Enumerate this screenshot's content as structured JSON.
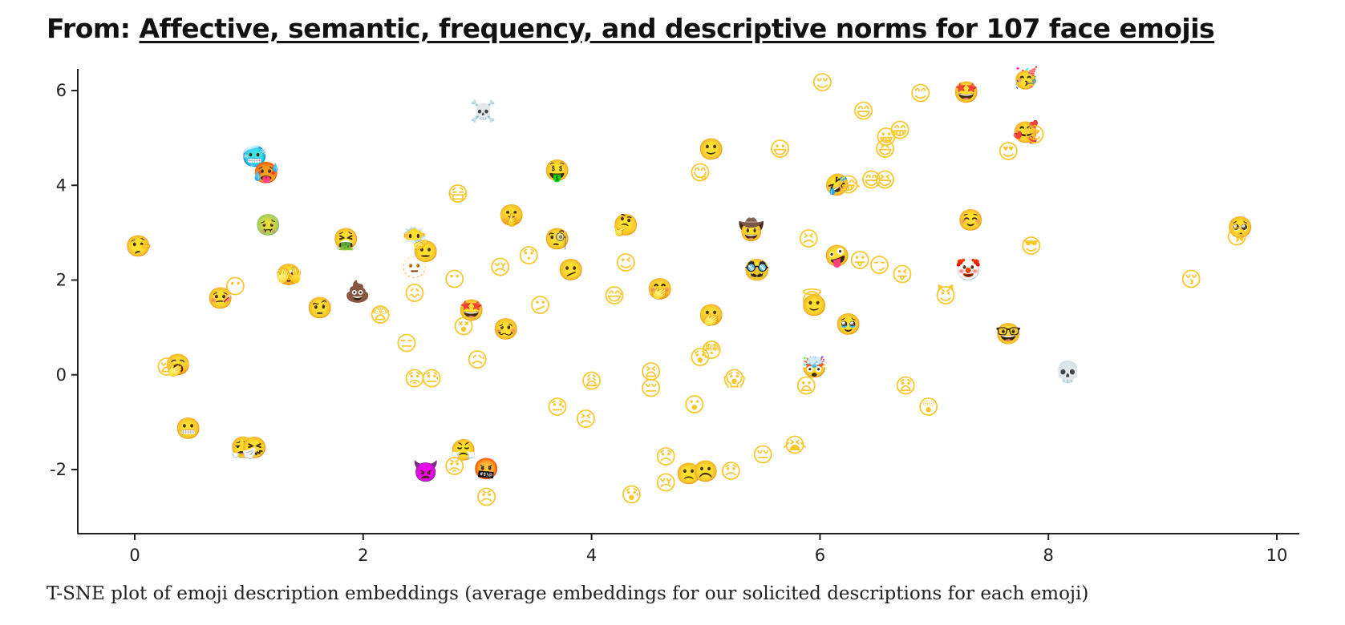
{
  "header": {
    "prefix": "From:",
    "link_text": "Affective, semantic, frequency, and descriptive norms for 107 face emojis"
  },
  "caption": "T-SNE plot of emoji description embeddings (average embeddings for our solicited descriptions for each emoji)",
  "chart_data": {
    "type": "scatter",
    "title": "",
    "xlabel": "",
    "ylabel": "",
    "xlim": [
      -0.5,
      10.2
    ],
    "ylim": [
      -3.4,
      6.5
    ],
    "grid": false,
    "x_ticks": [
      0,
      2,
      4,
      6,
      8,
      10
    ],
    "y_ticks": [
      -2,
      0,
      2,
      4,
      6
    ],
    "colors": {
      "axis": "#222222",
      "emoji_yellow": "#f9c62b"
    },
    "points": [
      {
        "x": 3.05,
        "y": 5.55,
        "emoji": "☠️"
      },
      {
        "x": 6.02,
        "y": 6.15,
        "emoji": "😌"
      },
      {
        "x": 6.88,
        "y": 5.92,
        "emoji": "😊"
      },
      {
        "x": 7.28,
        "y": 5.95,
        "emoji": "🤩"
      },
      {
        "x": 7.8,
        "y": 6.25,
        "emoji": "🥳"
      },
      {
        "x": 6.38,
        "y": 5.55,
        "emoji": "😄"
      },
      {
        "x": 6.58,
        "y": 5.0,
        "emoji": "😀"
      },
      {
        "x": 6.7,
        "y": 5.15,
        "emoji": "😁"
      },
      {
        "x": 6.57,
        "y": 4.75,
        "emoji": "😆"
      },
      {
        "x": 7.8,
        "y": 5.1,
        "emoji": "🥰"
      },
      {
        "x": 7.88,
        "y": 5.05,
        "emoji": "😍"
      },
      {
        "x": 7.65,
        "y": 4.7,
        "emoji": "😍"
      },
      {
        "x": 1.05,
        "y": 4.6,
        "emoji": "🥶"
      },
      {
        "x": 1.15,
        "y": 4.25,
        "emoji": "🥵"
      },
      {
        "x": 3.7,
        "y": 4.3,
        "emoji": "🤑"
      },
      {
        "x": 5.05,
        "y": 4.75,
        "emoji": "🙂"
      },
      {
        "x": 4.95,
        "y": 4.25,
        "emoji": "😋"
      },
      {
        "x": 5.65,
        "y": 4.75,
        "emoji": "😃"
      },
      {
        "x": 6.15,
        "y": 4.0,
        "emoji": "🤣"
      },
      {
        "x": 6.25,
        "y": 4.0,
        "emoji": "😂"
      },
      {
        "x": 6.45,
        "y": 4.1,
        "emoji": "😅"
      },
      {
        "x": 6.57,
        "y": 4.1,
        "emoji": "😆"
      },
      {
        "x": 1.17,
        "y": 3.15,
        "emoji": "🤢"
      },
      {
        "x": 2.83,
        "y": 3.8,
        "emoji": "😷"
      },
      {
        "x": 3.3,
        "y": 3.35,
        "emoji": "🤫"
      },
      {
        "x": 4.3,
        "y": 3.15,
        "emoji": "🤔"
      },
      {
        "x": 5.4,
        "y": 3.05,
        "emoji": "🤠"
      },
      {
        "x": 7.32,
        "y": 3.25,
        "emoji": "☺️"
      },
      {
        "x": 9.68,
        "y": 3.1,
        "emoji": "🥺"
      },
      {
        "x": 9.65,
        "y": 2.9,
        "emoji": "😘"
      },
      {
        "x": 0.03,
        "y": 2.7,
        "emoji": "🤥"
      },
      {
        "x": 1.85,
        "y": 2.85,
        "emoji": "🤮"
      },
      {
        "x": 2.45,
        "y": 2.9,
        "emoji": "😶‍🌫️"
      },
      {
        "x": 2.55,
        "y": 2.6,
        "emoji": "🫡"
      },
      {
        "x": 3.7,
        "y": 2.85,
        "emoji": "🧐"
      },
      {
        "x": 5.9,
        "y": 2.85,
        "emoji": "😣"
      },
      {
        "x": 7.85,
        "y": 2.7,
        "emoji": "😎"
      },
      {
        "x": 6.15,
        "y": 2.5,
        "emoji": "🤪"
      },
      {
        "x": 6.35,
        "y": 2.4,
        "emoji": "😛"
      },
      {
        "x": 6.52,
        "y": 2.3,
        "emoji": "😏"
      },
      {
        "x": 6.72,
        "y": 2.1,
        "emoji": "😜"
      },
      {
        "x": 7.3,
        "y": 2.2,
        "emoji": "🤡"
      },
      {
        "x": 3.2,
        "y": 2.25,
        "emoji": "😢"
      },
      {
        "x": 3.45,
        "y": 2.5,
        "emoji": "😯"
      },
      {
        "x": 3.82,
        "y": 2.2,
        "emoji": "🫤"
      },
      {
        "x": 4.3,
        "y": 2.35,
        "emoji": "😉"
      },
      {
        "x": 5.45,
        "y": 2.2,
        "emoji": "🥸"
      },
      {
        "x": 9.25,
        "y": 2.0,
        "emoji": "😚"
      },
      {
        "x": 0.75,
        "y": 1.6,
        "emoji": "🤒"
      },
      {
        "x": 0.88,
        "y": 1.85,
        "emoji": "😶"
      },
      {
        "x": 1.35,
        "y": 2.1,
        "emoji": "🫣"
      },
      {
        "x": 2.45,
        "y": 2.25,
        "emoji": "🫥"
      },
      {
        "x": 2.8,
        "y": 2.0,
        "emoji": "😶"
      },
      {
        "x": 4.6,
        "y": 1.8,
        "emoji": "🤭"
      },
      {
        "x": 5.93,
        "y": 1.55,
        "emoji": "😇"
      },
      {
        "x": 5.95,
        "y": 1.45,
        "emoji": "🙂"
      },
      {
        "x": 7.1,
        "y": 1.65,
        "emoji": "😈"
      },
      {
        "x": 1.62,
        "y": 1.4,
        "emoji": "🤨"
      },
      {
        "x": 1.95,
        "y": 1.75,
        "emoji": "💩"
      },
      {
        "x": 2.45,
        "y": 1.7,
        "emoji": "😖"
      },
      {
        "x": 2.15,
        "y": 1.25,
        "emoji": "😨"
      },
      {
        "x": 2.95,
        "y": 1.35,
        "emoji": "🤩"
      },
      {
        "x": 3.55,
        "y": 1.45,
        "emoji": "😕"
      },
      {
        "x": 4.2,
        "y": 1.65,
        "emoji": "😅"
      },
      {
        "x": 5.05,
        "y": 1.25,
        "emoji": "🫢"
      },
      {
        "x": 6.25,
        "y": 1.05,
        "emoji": "🥹"
      },
      {
        "x": 2.88,
        "y": 1.0,
        "emoji": "😵"
      },
      {
        "x": 3.25,
        "y": 0.95,
        "emoji": "🥴"
      },
      {
        "x": 7.65,
        "y": 0.85,
        "emoji": "🤓"
      },
      {
        "x": 2.38,
        "y": 0.65,
        "emoji": "😑"
      },
      {
        "x": 3.0,
        "y": 0.3,
        "emoji": "😥"
      },
      {
        "x": 4.95,
        "y": 0.35,
        "emoji": "😰"
      },
      {
        "x": 5.05,
        "y": 0.5,
        "emoji": "😳"
      },
      {
        "x": 5.95,
        "y": 0.15,
        "emoji": "🤯"
      },
      {
        "x": 0.28,
        "y": 0.15,
        "emoji": "😪"
      },
      {
        "x": 0.38,
        "y": 0.2,
        "emoji": "🥱"
      },
      {
        "x": 2.45,
        "y": -0.1,
        "emoji": "😟"
      },
      {
        "x": 2.6,
        "y": -0.1,
        "emoji": "😓"
      },
      {
        "x": 4.0,
        "y": -0.15,
        "emoji": "😩"
      },
      {
        "x": 4.52,
        "y": 0.05,
        "emoji": "😫"
      },
      {
        "x": 4.52,
        "y": -0.3,
        "emoji": "😔"
      },
      {
        "x": 5.25,
        "y": -0.1,
        "emoji": "😱"
      },
      {
        "x": 5.88,
        "y": -0.25,
        "emoji": "😦"
      },
      {
        "x": 6.75,
        "y": -0.25,
        "emoji": "😧"
      },
      {
        "x": 8.17,
        "y": 0.05,
        "emoji": "💀"
      },
      {
        "x": 3.7,
        "y": -0.7,
        "emoji": "😓"
      },
      {
        "x": 3.95,
        "y": -0.95,
        "emoji": "😣"
      },
      {
        "x": 4.9,
        "y": -0.65,
        "emoji": "😮"
      },
      {
        "x": 6.95,
        "y": -0.7,
        "emoji": "😲"
      },
      {
        "x": 0.47,
        "y": -1.15,
        "emoji": "😬"
      },
      {
        "x": 0.95,
        "y": -1.55,
        "emoji": "😮‍💨"
      },
      {
        "x": 1.05,
        "y": -1.55,
        "emoji": "🤧"
      },
      {
        "x": 2.88,
        "y": -1.6,
        "emoji": "😤"
      },
      {
        "x": 4.65,
        "y": -1.75,
        "emoji": "😞"
      },
      {
        "x": 5.5,
        "y": -1.7,
        "emoji": "😔"
      },
      {
        "x": 5.78,
        "y": -1.5,
        "emoji": "😭"
      },
      {
        "x": 2.55,
        "y": -2.05,
        "emoji": "👿"
      },
      {
        "x": 2.8,
        "y": -1.95,
        "emoji": "😡"
      },
      {
        "x": 3.08,
        "y": -2.0,
        "emoji": "🤬"
      },
      {
        "x": 3.08,
        "y": -2.6,
        "emoji": "😠"
      },
      {
        "x": 4.35,
        "y": -2.55,
        "emoji": "😰"
      },
      {
        "x": 4.65,
        "y": -2.3,
        "emoji": "😢"
      },
      {
        "x": 4.85,
        "y": -2.1,
        "emoji": "🙁"
      },
      {
        "x": 5.0,
        "y": -2.05,
        "emoji": "☹️"
      },
      {
        "x": 5.22,
        "y": -2.05,
        "emoji": "😞"
      }
    ]
  }
}
